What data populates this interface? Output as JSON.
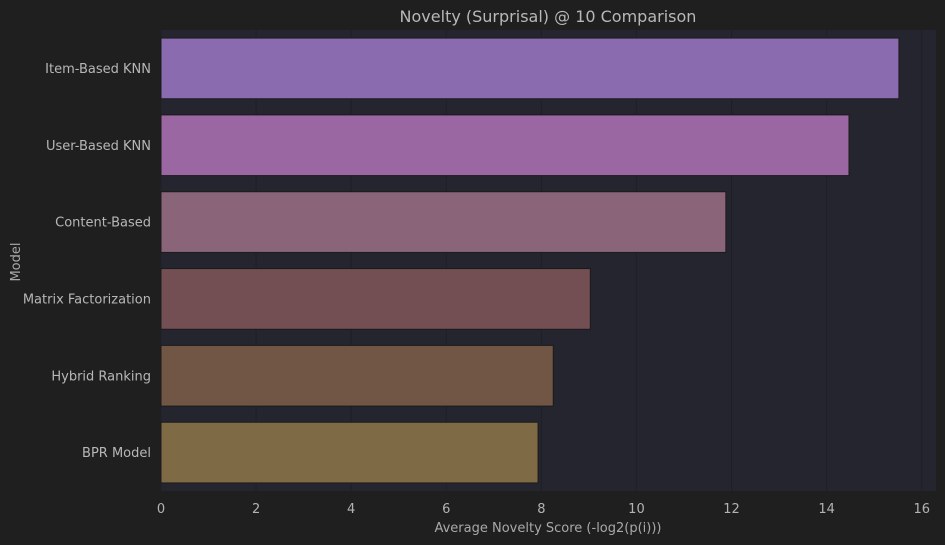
{
  "chart_data": {
    "type": "bar",
    "orientation": "horizontal",
    "title": "Novelty (Surprisal) @ 10 Comparison",
    "xlabel": "Average Novelty Score (-log2(p(i)))",
    "ylabel": "Model",
    "xlim": [
      0,
      16.3
    ],
    "xticks": [
      0,
      2,
      4,
      6,
      8,
      10,
      12,
      14,
      16
    ],
    "grid": true,
    "categories": [
      "Item-Based KNN",
      "User-Based KNN",
      "Content-Based",
      "Matrix Factorization",
      "Hybrid Ranking",
      "BPR Model"
    ],
    "values": [
      15.52,
      14.47,
      11.88,
      9.03,
      8.25,
      7.93
    ],
    "colors": [
      "#8b6bb0",
      "#9b67a3",
      "#8a6478",
      "#734f53",
      "#715646",
      "#7e6b45"
    ]
  },
  "theme": {
    "background": "#1f1f1f",
    "plot_background": "#25252f",
    "grid_color": "#1f1f28",
    "bar_edge": "#1b1b1b"
  }
}
